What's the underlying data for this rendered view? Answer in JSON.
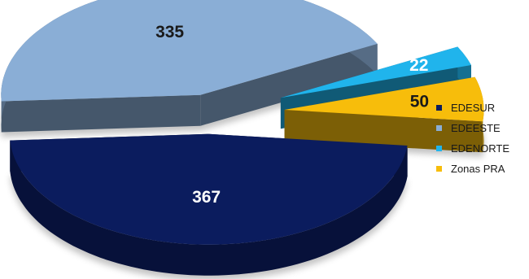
{
  "chart_data": {
    "type": "pie",
    "style": "3d-exploded",
    "categories": [
      "EDESUR",
      "EDEESTE",
      "EDENORTE",
      "Zonas PRA"
    ],
    "values": [
      367,
      335,
      22,
      50
    ],
    "colors": [
      "#0b1c5e",
      "#8aaed6",
      "#20b4ec",
      "#f7bd0b"
    ],
    "title": "",
    "legend_position": "right"
  }
}
